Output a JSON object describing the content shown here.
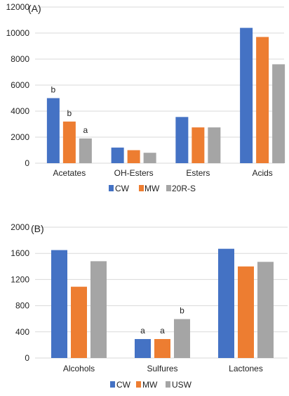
{
  "chart_data": [
    {
      "type": "bar",
      "panel_label": "(A)",
      "categories": [
        "Acetates",
        "OH-Esters",
        "Esters",
        "Acids"
      ],
      "series": [
        {
          "name": "CW",
          "color": "#4472C4",
          "values": [
            5000,
            1200,
            3550,
            10400
          ]
        },
        {
          "name": "MW",
          "color": "#ED7D31",
          "values": [
            3200,
            1000,
            2750,
            9700
          ]
        },
        {
          "name": "20R-S",
          "color": "#A5A5A5",
          "values": [
            1900,
            800,
            2750,
            7600
          ]
        }
      ],
      "y_ticks": [
        0,
        2000,
        4000,
        6000,
        8000,
        10000,
        12000
      ],
      "ylim": [
        0,
        12000
      ],
      "grid": true,
      "legend_position": "bottom-center",
      "annotations": [
        {
          "category": "Acetates",
          "series": "CW",
          "text": "b"
        },
        {
          "category": "Acetates",
          "series": "MW",
          "text": "b"
        },
        {
          "category": "Acetates",
          "series": "20R-S",
          "text": "a"
        }
      ]
    },
    {
      "type": "bar",
      "panel_label": "(B)",
      "categories": [
        "Alcohols",
        "Sulfures",
        "Lactones"
      ],
      "series": [
        {
          "name": "CW",
          "color": "#4472C4",
          "values": [
            1650,
            290,
            1670
          ]
        },
        {
          "name": "MW",
          "color": "#ED7D31",
          "values": [
            1090,
            290,
            1400
          ]
        },
        {
          "name": "USW",
          "color": "#A5A5A5",
          "values": [
            1480,
            595,
            1470
          ]
        }
      ],
      "y_ticks": [
        0,
        400,
        800,
        1200,
        1600,
        2000
      ],
      "ylim": [
        0,
        2000
      ],
      "grid": true,
      "legend_position": "bottom-center",
      "annotations": [
        {
          "category": "Sulfures",
          "series": "CW",
          "text": "a"
        },
        {
          "category": "Sulfures",
          "series": "MW",
          "text": "a"
        },
        {
          "category": "Sulfures",
          "series": "USW",
          "text": "b"
        }
      ]
    }
  ]
}
